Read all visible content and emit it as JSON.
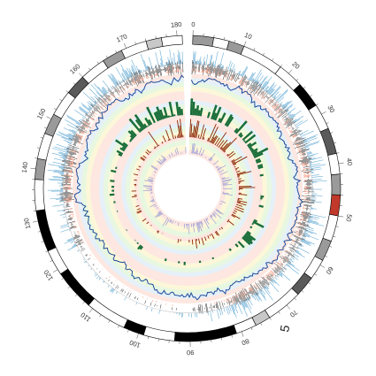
{
  "chart_data": {
    "type": "circos",
    "chromosome": "5",
    "coordinate_range_mb": [
      0,
      181
    ],
    "tick_labels": [
      "0",
      "10",
      "20",
      "30",
      "40",
      "50",
      "60",
      "70",
      "80",
      "90",
      "100",
      "110",
      "120",
      "130",
      "140",
      "150",
      "160",
      "170",
      "180"
    ],
    "ideogram": {
      "bands": [
        {
          "start": 0,
          "end": 4,
          "stain": "gpos50"
        },
        {
          "start": 4,
          "end": 7,
          "stain": "gneg"
        },
        {
          "start": 7,
          "end": 10,
          "stain": "gpos50"
        },
        {
          "start": 10,
          "end": 18,
          "stain": "gneg"
        },
        {
          "start": 18,
          "end": 23,
          "stain": "gneg"
        },
        {
          "start": 23,
          "end": 28,
          "stain": "gpos100"
        },
        {
          "start": 28,
          "end": 33,
          "stain": "gneg"
        },
        {
          "start": 33,
          "end": 38,
          "stain": "gpos75"
        },
        {
          "start": 38,
          "end": 42,
          "stain": "gneg"
        },
        {
          "start": 42,
          "end": 46,
          "stain": "gpos50"
        },
        {
          "start": 46,
          "end": 50,
          "stain": "acen"
        },
        {
          "start": 50,
          "end": 55,
          "stain": "gneg"
        },
        {
          "start": 55,
          "end": 59,
          "stain": "gpos50"
        },
        {
          "start": 59,
          "end": 63,
          "stain": "gneg"
        },
        {
          "start": 63,
          "end": 67,
          "stain": "gpos75"
        },
        {
          "start": 67,
          "end": 74,
          "stain": "gneg"
        },
        {
          "start": 74,
          "end": 77,
          "stain": "gpos25"
        },
        {
          "start": 77,
          "end": 81,
          "stain": "gneg"
        },
        {
          "start": 81,
          "end": 93,
          "stain": "gpos100"
        },
        {
          "start": 93,
          "end": 99,
          "stain": "gneg"
        },
        {
          "start": 99,
          "end": 103,
          "stain": "gpos100"
        },
        {
          "start": 103,
          "end": 111,
          "stain": "gneg"
        },
        {
          "start": 111,
          "end": 119,
          "stain": "gpos100"
        },
        {
          "start": 119,
          "end": 124,
          "stain": "gneg"
        },
        {
          "start": 124,
          "end": 132,
          "stain": "gpos100"
        },
        {
          "start": 132,
          "end": 138,
          "stain": "gneg"
        },
        {
          "start": 138,
          "end": 142,
          "stain": "gpos50"
        },
        {
          "start": 142,
          "end": 147,
          "stain": "gneg"
        },
        {
          "start": 147,
          "end": 151,
          "stain": "gpos50"
        },
        {
          "start": 151,
          "end": 156,
          "stain": "gneg"
        },
        {
          "start": 156,
          "end": 160,
          "stain": "gpos75"
        },
        {
          "start": 160,
          "end": 165,
          "stain": "gneg"
        },
        {
          "start": 165,
          "end": 169,
          "stain": "gpos50"
        },
        {
          "start": 169,
          "end": 174,
          "stain": "gneg"
        },
        {
          "start": 174,
          "end": 177,
          "stain": "gpos25"
        },
        {
          "start": 177,
          "end": 181,
          "stain": "gneg"
        }
      ]
    },
    "tracks": [
      {
        "kind": "histogram",
        "description": "blue histogram above grey baseline (outer)",
        "color": "#6baed6"
      },
      {
        "kind": "histogram",
        "description": "grey/black histogram (outer)",
        "color": "#333333"
      },
      {
        "kind": "histogram",
        "description": "salmon histogram (outer)",
        "color": "#fc9272"
      },
      {
        "kind": "line",
        "description": "dark blue line profile",
        "color": "#1f4e9c"
      },
      {
        "kind": "histogram",
        "description": "green histogram",
        "color": "#1a6e3a"
      },
      {
        "kind": "histogram",
        "description": "dark red histogram",
        "color": "#8b2500"
      },
      {
        "kind": "histogram",
        "description": "lavender histogram (inner)",
        "color": "#9b9fd6"
      }
    ],
    "colors": {
      "gneg": "#ffffff",
      "gpos25": "#c8c8c8",
      "gpos50": "#9a9a9a",
      "gpos75": "#5a5a5a",
      "gpos100": "#000000",
      "acen": "#c0392b",
      "band_pink": "#fbd3c6",
      "band_yellow": "#faf0b8",
      "band_green": "#d6f0c6",
      "band_blue": "#cfe3f3"
    }
  }
}
